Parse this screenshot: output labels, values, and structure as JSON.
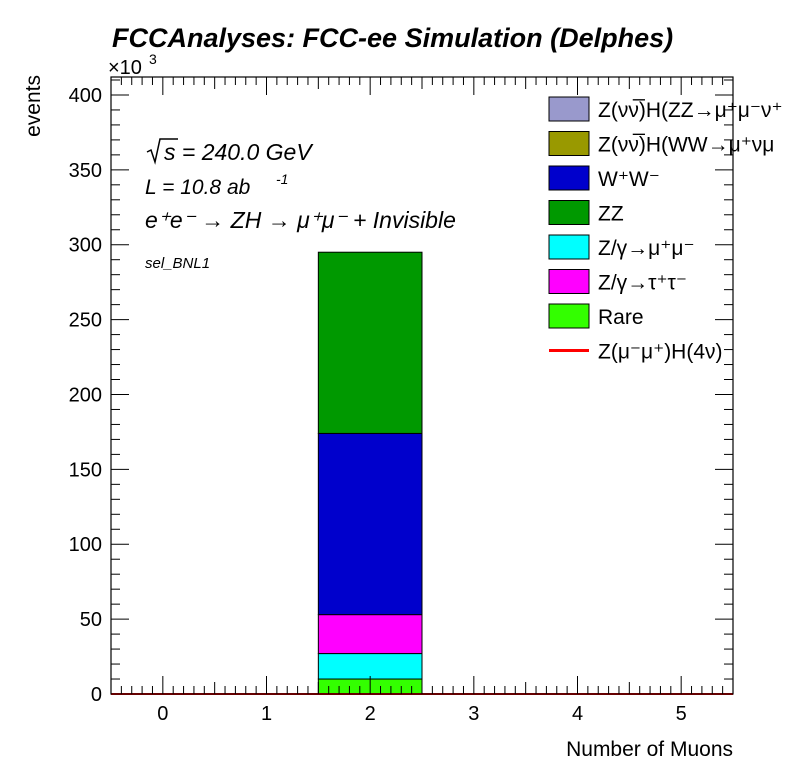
{
  "chart_data": {
    "type": "bar",
    "stacked": true,
    "title": "FCCAnalyses: FCC-ee Simulation (Delphes)",
    "xlabel": "Number of Muons",
    "ylabel": "events",
    "y_multiplier": "×10",
    "y_multiplier_exp": "3",
    "xlim": [
      -0.5,
      5.5
    ],
    "ylim": [
      0,
      412
    ],
    "x_ticks": [
      0,
      1,
      2,
      3,
      4,
      5
    ],
    "x_tick_labels": [
      "0",
      "1",
      "2",
      "3",
      "4",
      "5"
    ],
    "y_ticks": [
      0,
      50,
      100,
      150,
      200,
      250,
      300,
      350,
      400
    ],
    "y_tick_labels": [
      "0",
      "50",
      "100",
      "150",
      "200",
      "250",
      "300",
      "350",
      "400"
    ],
    "categories": [
      0,
      1,
      2,
      3,
      4,
      5
    ],
    "series": [
      {
        "name": "Rare",
        "color": "#33ff00",
        "values": [
          0,
          0,
          10,
          0,
          0,
          0
        ]
      },
      {
        "name": "Z/γ→τ⁺τ⁻",
        "color": "#ff00ff",
        "values": [
          0,
          0,
          0,
          0,
          0,
          0
        ]
      },
      {
        "name": "Z/γ→μ⁺μ⁻",
        "color": "#00ffff",
        "values": [
          0,
          0,
          17,
          0,
          0,
          0
        ]
      },
      {
        "name": "Z/γ→τ⁺τ⁻",
        "color": "#ff00ff",
        "values": [
          0,
          0,
          26,
          0,
          0,
          0
        ]
      },
      {
        "name": "W⁺W⁻",
        "color": "#0000cc",
        "values": [
          0,
          0,
          121,
          0,
          0,
          0
        ]
      },
      {
        "name": "ZZ",
        "color": "#009900",
        "values": [
          0,
          0,
          121,
          0,
          0,
          0
        ]
      }
    ],
    "signal_line": {
      "name": "Z(μ⁻μ⁺)H(4ν)",
      "color": "#ff0000",
      "values": [
        0,
        0,
        0,
        0,
        0,
        0
      ]
    },
    "legend": {
      "placement": "top-right",
      "entries": [
        {
          "label": "Z(νν̅)H(ZZ→μ⁺μ⁻ν⁺",
          "color": "#9999cc",
          "kind": "box"
        },
        {
          "label": "Z(νν̅)H(WW→μ⁺νμ",
          "color": "#999900",
          "kind": "box"
        },
        {
          "label": "W⁺W⁻",
          "color": "#0000cc",
          "kind": "box"
        },
        {
          "label": "ZZ",
          "color": "#009900",
          "kind": "box"
        },
        {
          "label": "Z/γ→μ⁺μ⁻",
          "color": "#00ffff",
          "kind": "box"
        },
        {
          "label": "Z/γ→τ⁺τ⁻",
          "color": "#ff00ff",
          "kind": "box"
        },
        {
          "label": "Rare",
          "color": "#33ff00",
          "kind": "box"
        },
        {
          "label": "Z(μ⁻μ⁺)H(4ν)",
          "color": "#ff0000",
          "kind": "line"
        }
      ]
    },
    "annotations": {
      "sqrt_s": "s = 240.0 GeV",
      "lumi": "L = 10.8 ab",
      "lumi_exp": "-1",
      "process": "e⁺e⁻ → ZH → μ⁺μ⁻ + Invisible",
      "selection": "sel_BNL1"
    }
  }
}
